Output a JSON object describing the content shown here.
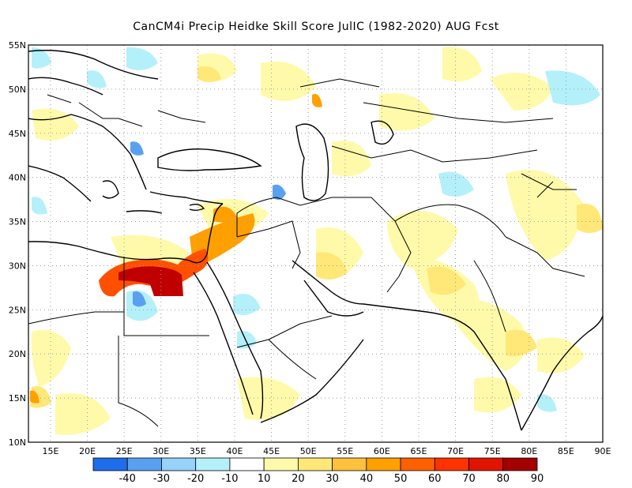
{
  "title": "CanCM4i Precip Heidke Skill Score JulIC (1982-2020) AUG Fcst",
  "map": {
    "lon_range": [
      12,
      90
    ],
    "lat_range": [
      10,
      55
    ],
    "lat_labels": [
      "10N",
      "15N",
      "20N",
      "25N",
      "30N",
      "35N",
      "40N",
      "45N",
      "50N",
      "55N"
    ],
    "lon_labels": [
      "15E",
      "20E",
      "25E",
      "30E",
      "35E",
      "40E",
      "45E",
      "50E",
      "55E",
      "60E",
      "65E",
      "70E",
      "75E",
      "80E",
      "85E",
      "90E"
    ],
    "grid": "dotted"
  },
  "colorbar": {
    "colors": [
      "#1e6eeb",
      "#5aa0f0",
      "#96d2fa",
      "#b4f0fa",
      "#ffffff",
      "#fffaaa",
      "#ffe878",
      "#ffc03c",
      "#ffa000",
      "#ff6000",
      "#ff3200",
      "#e11400",
      "#a50000"
    ],
    "labels": [
      "-40",
      "-30",
      "-20",
      "-10",
      "10",
      "20",
      "30",
      "40",
      "50",
      "60",
      "70",
      "80",
      "90"
    ]
  },
  "skill_regions": [
    {
      "name": "north-egypt-libya-max",
      "level": "80-90",
      "color": "#c00000"
    },
    {
      "name": "sinai-levant",
      "level": "60-70",
      "color": "#ff5000"
    },
    {
      "name": "caspian-west",
      "level": "-30",
      "color": "#5aa0f0"
    },
    {
      "name": "libya-desert",
      "level": "-30",
      "color": "#5aa0f0"
    }
  ]
}
